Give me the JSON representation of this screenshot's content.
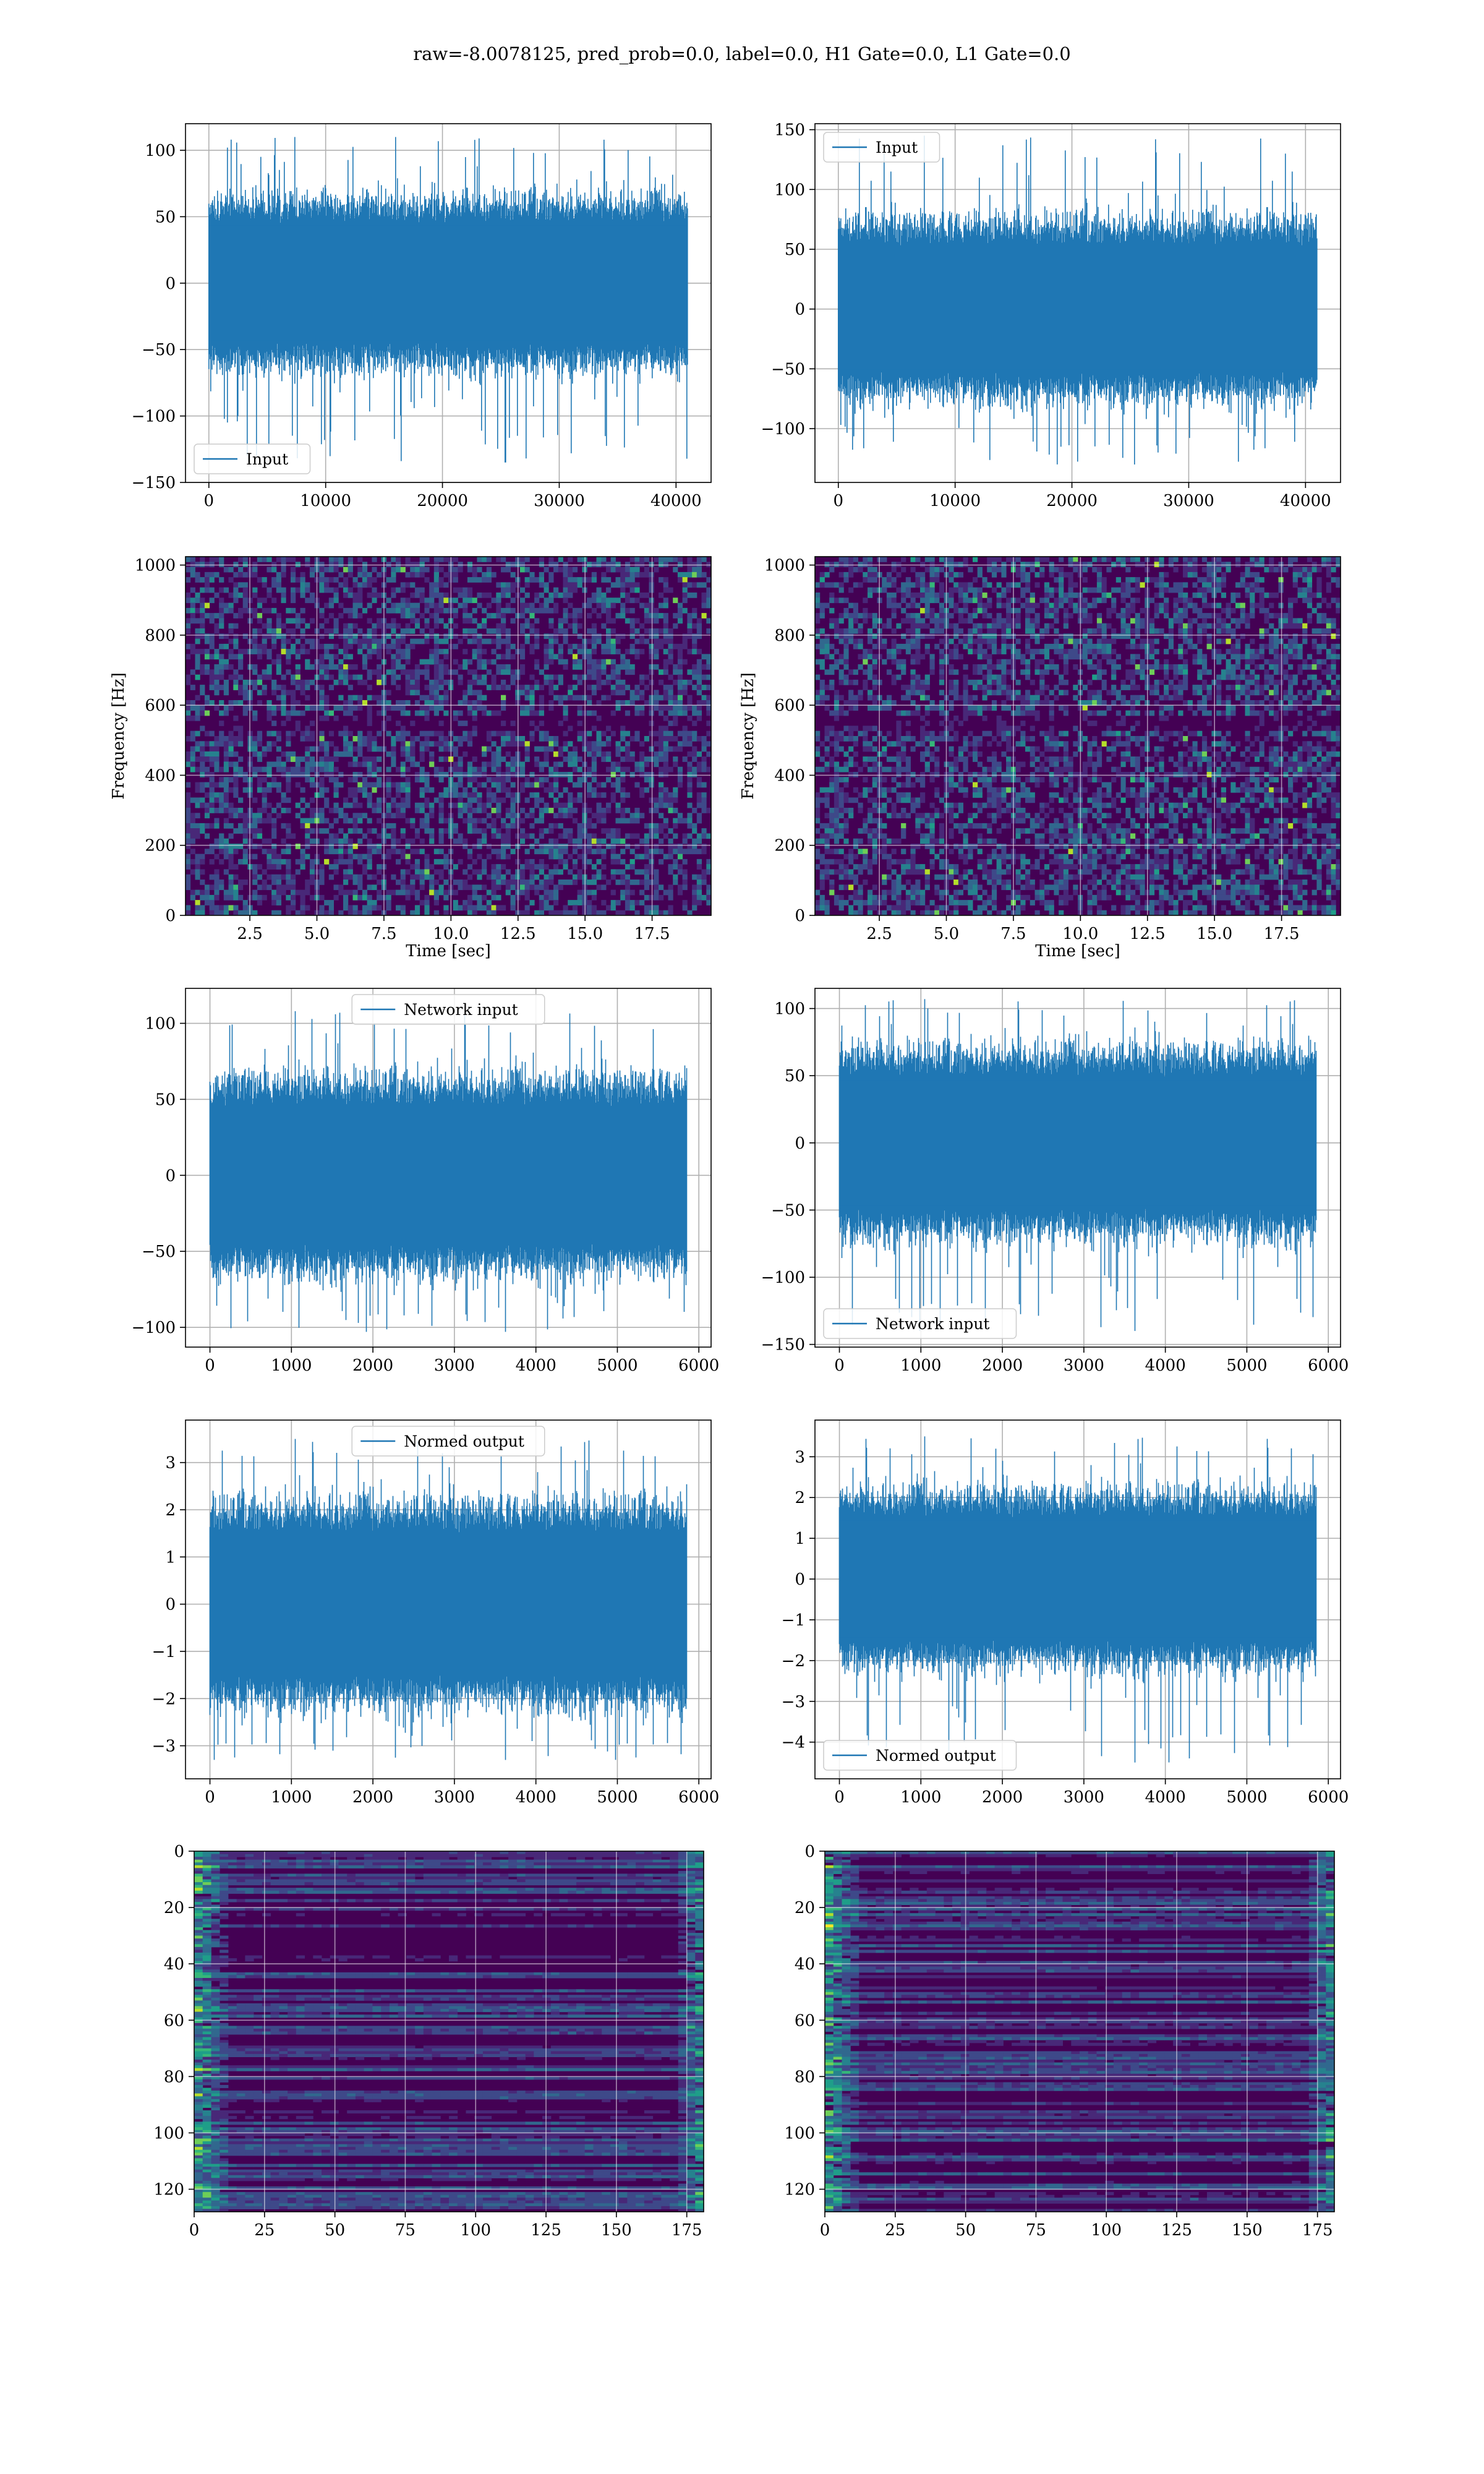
{
  "figure": {
    "title": "raw=-8.0078125, pred_prob=0.0, label=0.0, H1 Gate=0.0, L1 Gate=0.0",
    "colors": {
      "series": "#1f77b4",
      "grid": "#b0b0b0",
      "viridis": [
        "#440154",
        "#482878",
        "#3e4989",
        "#31688e",
        "#26828e",
        "#1f9e89",
        "#35b779",
        "#6ece58",
        "#b5de2b",
        "#fde725"
      ]
    }
  },
  "chart_data": [
    {
      "id": "input-h1",
      "type": "line",
      "legend": "top-left-lower",
      "series": [
        {
          "name": "Input",
          "kind": "noise",
          "n": 40960,
          "center": 0,
          "typical_range": [
            -60,
            60
          ],
          "max_peak": 110,
          "min_peak": -135
        }
      ],
      "xlim": [
        -2000,
        43000
      ],
      "ylim": [
        -150,
        120
      ],
      "xticks": [
        0,
        10000,
        20000,
        30000,
        40000
      ],
      "xticklabels": [
        "0",
        "10000",
        "20000",
        "30000",
        "40000"
      ],
      "yticks": [
        -150,
        -100,
        -50,
        0,
        50,
        100
      ],
      "yticklabels": [
        "−150",
        "−100",
        "−50",
        "0",
        "50",
        "100"
      ],
      "legend_pos": "lower left",
      "grid": true,
      "xlabel": "",
      "ylabel": ""
    },
    {
      "id": "input-l1",
      "type": "line",
      "series": [
        {
          "name": "Input",
          "kind": "noise",
          "n": 40960,
          "center": 0,
          "typical_range": [
            -70,
            70
          ],
          "max_peak": 145,
          "min_peak": -130
        }
      ],
      "xlim": [
        -2000,
        43000
      ],
      "ylim": [
        -145,
        155
      ],
      "xticks": [
        0,
        10000,
        20000,
        30000,
        40000
      ],
      "xticklabels": [
        "0",
        "10000",
        "20000",
        "30000",
        "40000"
      ],
      "yticks": [
        -100,
        -50,
        0,
        50,
        100,
        150
      ],
      "yticklabels": [
        "−100",
        "−50",
        "0",
        "50",
        "100",
        "150"
      ],
      "legend_pos": "upper left",
      "grid": true,
      "xlabel": "",
      "ylabel": ""
    },
    {
      "id": "spectrogram-h1",
      "type": "heatmap",
      "xlim": [
        0.1,
        19.7
      ],
      "ylim": [
        0,
        1024
      ],
      "xticks": [
        2.5,
        5.0,
        7.5,
        10.0,
        12.5,
        15.0,
        17.5
      ],
      "xticklabels": [
        "2.5",
        "5.0",
        "7.5",
        "10.0",
        "12.5",
        "15.0",
        "17.5"
      ],
      "yticks": [
        0,
        200,
        400,
        600,
        800,
        1000
      ],
      "yticklabels": [
        "0",
        "200",
        "400",
        "600",
        "800",
        "1000"
      ],
      "xlabel": "Time [sec]",
      "ylabel": "Frequency [Hz]",
      "grid": true
    },
    {
      "id": "spectrogram-l1",
      "type": "heatmap",
      "xlim": [
        0.1,
        19.7
      ],
      "ylim": [
        0,
        1024
      ],
      "xticks": [
        2.5,
        5.0,
        7.5,
        10.0,
        12.5,
        15.0,
        17.5
      ],
      "xticklabels": [
        "2.5",
        "5.0",
        "7.5",
        "10.0",
        "12.5",
        "15.0",
        "17.5"
      ],
      "yticks": [
        0,
        200,
        400,
        600,
        800,
        1000
      ],
      "yticklabels": [
        "0",
        "200",
        "400",
        "600",
        "800",
        "1000"
      ],
      "xlabel": "Time [sec]",
      "ylabel": "Frequency [Hz]",
      "grid": true
    },
    {
      "id": "network-input-h1",
      "type": "line",
      "series": [
        {
          "name": "Network input",
          "kind": "noise",
          "n": 5850,
          "center": 0,
          "typical_range": [
            -60,
            60
          ],
          "max_peak": 108,
          "min_peak": -103
        }
      ],
      "xlim": [
        -300,
        6150
      ],
      "ylim": [
        -113,
        123
      ],
      "xticks": [
        0,
        1000,
        2000,
        3000,
        4000,
        5000,
        6000
      ],
      "xticklabels": [
        "0",
        "1000",
        "2000",
        "3000",
        "4000",
        "5000",
        "6000"
      ],
      "yticks": [
        -100,
        -50,
        0,
        50,
        100
      ],
      "yticklabels": [
        "−100",
        "−50",
        "0",
        "50",
        "100"
      ],
      "legend_pos": "upper center",
      "grid": true,
      "xlabel": "",
      "ylabel": ""
    },
    {
      "id": "network-input-l1",
      "type": "line",
      "series": [
        {
          "name": "Network input",
          "kind": "noise",
          "n": 5850,
          "center": 0,
          "typical_range": [
            -65,
            65
          ],
          "max_peak": 107,
          "min_peak": -140
        }
      ],
      "xlim": [
        -300,
        6150
      ],
      "ylim": [
        -152,
        115
      ],
      "xticks": [
        0,
        1000,
        2000,
        3000,
        4000,
        5000,
        6000
      ],
      "xticklabels": [
        "0",
        "1000",
        "2000",
        "3000",
        "4000",
        "5000",
        "6000"
      ],
      "yticks": [
        -150,
        -100,
        -50,
        0,
        50,
        100
      ],
      "yticklabels": [
        "−150",
        "−100",
        "−50",
        "0",
        "50",
        "100"
      ],
      "legend_pos": "lower left",
      "grid": true,
      "xlabel": "",
      "ylabel": ""
    },
    {
      "id": "normed-output-h1",
      "type": "line",
      "series": [
        {
          "name": "Normed output",
          "kind": "noise",
          "n": 5850,
          "center": 0,
          "typical_range": [
            -2.0,
            2.0
          ],
          "max_peak": 3.5,
          "min_peak": -3.3
        }
      ],
      "xlim": [
        -300,
        6150
      ],
      "ylim": [
        -3.7,
        3.9
      ],
      "xticks": [
        0,
        1000,
        2000,
        3000,
        4000,
        5000,
        6000
      ],
      "xticklabels": [
        "0",
        "1000",
        "2000",
        "3000",
        "4000",
        "5000",
        "6000"
      ],
      "yticks": [
        -3,
        -2,
        -1,
        0,
        1,
        2,
        3
      ],
      "yticklabels": [
        "−3",
        "−2",
        "−1",
        "0",
        "1",
        "2",
        "3"
      ],
      "legend_pos": "upper center",
      "grid": true,
      "xlabel": "",
      "ylabel": ""
    },
    {
      "id": "normed-output-l1",
      "type": "line",
      "series": [
        {
          "name": "Normed output",
          "kind": "noise",
          "n": 5850,
          "center": 0,
          "typical_range": [
            -2.0,
            2.0
          ],
          "max_peak": 3.5,
          "min_peak": -4.5
        }
      ],
      "xlim": [
        -300,
        6150
      ],
      "ylim": [
        -4.9,
        3.9
      ],
      "xticks": [
        0,
        1000,
        2000,
        3000,
        4000,
        5000,
        6000
      ],
      "xticklabels": [
        "0",
        "1000",
        "2000",
        "3000",
        "4000",
        "5000",
        "6000"
      ],
      "yticks": [
        -4,
        -3,
        -2,
        -1,
        0,
        1,
        2,
        3
      ],
      "yticklabels": [
        "−4",
        "−3",
        "−2",
        "−1",
        "0",
        "1",
        "2",
        "3"
      ],
      "legend_pos": "lower left",
      "grid": true,
      "xlabel": "",
      "ylabel": ""
    },
    {
      "id": "feature-map-h1",
      "type": "heatmap",
      "inverted_y": true,
      "xlim": [
        0,
        181
      ],
      "ylim": [
        0,
        128
      ],
      "xticks": [
        0,
        25,
        50,
        75,
        100,
        125,
        150,
        175
      ],
      "xticklabels": [
        "0",
        "25",
        "50",
        "75",
        "100",
        "125",
        "150",
        "175"
      ],
      "yticks": [
        0,
        20,
        40,
        60,
        80,
        100,
        120
      ],
      "yticklabels": [
        "0",
        "20",
        "40",
        "60",
        "80",
        "100",
        "120"
      ],
      "grid": true,
      "xlabel": "",
      "ylabel": ""
    },
    {
      "id": "feature-map-l1",
      "type": "heatmap",
      "inverted_y": true,
      "xlim": [
        0,
        181
      ],
      "ylim": [
        0,
        128
      ],
      "xticks": [
        0,
        25,
        50,
        75,
        100,
        125,
        150,
        175
      ],
      "xticklabels": [
        "0",
        "25",
        "50",
        "75",
        "100",
        "125",
        "150",
        "175"
      ],
      "yticks": [
        0,
        20,
        40,
        60,
        80,
        100,
        120
      ],
      "yticklabels": [
        "0",
        "20",
        "40",
        "60",
        "80",
        "100",
        "120"
      ],
      "grid": true,
      "xlabel": "",
      "ylabel": ""
    }
  ]
}
